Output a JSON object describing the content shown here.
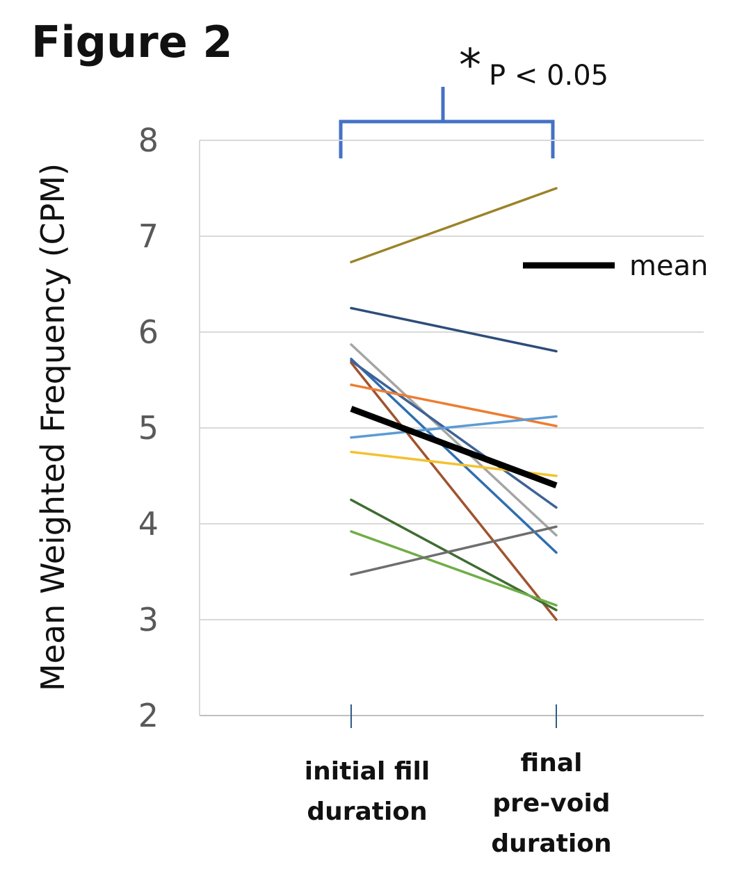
{
  "figure_label": "Figure 2",
  "significance": {
    "star": "*",
    "text": "P < 0.05",
    "bracket_color": "#4472C4"
  },
  "chart_data": {
    "type": "line",
    "title": "",
    "xlabel": "",
    "ylabel": "Mean Weighted Frequency (CPM)",
    "categories": [
      [
        "initial fill",
        "duration"
      ],
      [
        "final",
        "pre-void",
        "duration"
      ]
    ],
    "ylim": [
      2,
      8
    ],
    "yticks": [
      2,
      3,
      4,
      5,
      6,
      7,
      8
    ],
    "grid": true,
    "legend": {
      "position": "right",
      "entries": [
        {
          "label": "mean",
          "color": "#000000"
        }
      ]
    },
    "series": [
      {
        "values": [
          6.73,
          7.5
        ],
        "color": "#9C8228"
      },
      {
        "values": [
          6.25,
          5.8
        ],
        "color": "#2E4D7A"
      },
      {
        "values": [
          5.87,
          3.88
        ],
        "color": "#A5A5A5"
      },
      {
        "values": [
          5.72,
          3.7
        ],
        "color": "#2E6EB0"
      },
      {
        "values": [
          5.7,
          4.17
        ],
        "color": "#3D6296"
      },
      {
        "values": [
          5.68,
          3.0
        ],
        "color": "#A0522D"
      },
      {
        "values": [
          5.45,
          5.02
        ],
        "color": "#ED7D31"
      },
      {
        "values": [
          4.9,
          5.12
        ],
        "color": "#5B9BD5"
      },
      {
        "values": [
          4.75,
          4.5
        ],
        "color": "#F2C230"
      },
      {
        "values": [
          4.25,
          3.1
        ],
        "color": "#3F6C32"
      },
      {
        "values": [
          3.92,
          3.15
        ],
        "color": "#70AD47"
      },
      {
        "values": [
          3.47,
          3.97
        ],
        "color": "#6E6E6E"
      },
      {
        "name": "mean",
        "values": [
          5.2,
          4.4
        ],
        "color": "#000000",
        "bold": true
      }
    ]
  }
}
